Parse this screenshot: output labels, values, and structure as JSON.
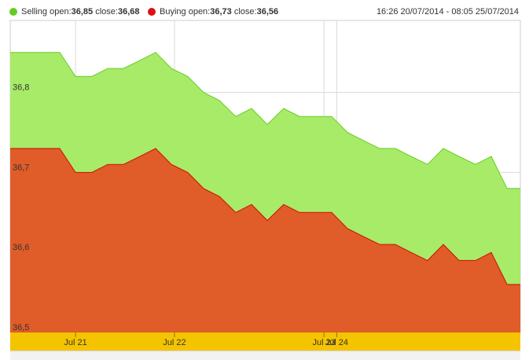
{
  "legend": {
    "selling": {
      "name": "Selling",
      "open_label": "open:",
      "open_value": "36,85",
      "close_label": "close:",
      "close_value": "36,68",
      "color": "#66cc22"
    },
    "buying": {
      "name": "Buying",
      "open_label": "open:",
      "open_value": "36,73",
      "close_label": "close:",
      "close_value": "36,56",
      "color": "#dd1111"
    },
    "date_range": "16:26 20/07/2014 - 08:05 25/07/2014"
  },
  "chart_data": {
    "type": "area",
    "title": "",
    "xlabel": "",
    "ylabel": "",
    "ylim": [
      36.5,
      36.89
    ],
    "y_ticks": [
      {
        "value": 36.8,
        "label": "36,8"
      },
      {
        "value": 36.7,
        "label": "36,7"
      },
      {
        "value": 36.6,
        "label": "36,6"
      },
      {
        "value": 36.5,
        "label": "36,5"
      }
    ],
    "x_range": [
      0,
      100
    ],
    "x_ticks": [
      {
        "x": 12.8,
        "label": "Jul 21"
      },
      {
        "x": 32.2,
        "label": "Jul 22"
      },
      {
        "x": 61.5,
        "label": "Jul 23"
      },
      {
        "x": 64.0,
        "label": "Jul 24"
      }
    ],
    "series": [
      {
        "name": "Selling",
        "fill": "#a8eb68",
        "stroke": "#66cc22",
        "x": [
          0,
          9.7,
          12.8,
          16.0,
          19.1,
          22.2,
          25.4,
          28.5,
          31.6,
          34.8,
          37.9,
          41.0,
          44.2,
          47.3,
          50.4,
          53.6,
          56.7,
          59.8,
          63.0,
          66.1,
          69.2,
          72.4,
          75.5,
          78.6,
          81.8,
          84.9,
          88.0,
          91.2,
          94.3,
          97.4,
          100
        ],
        "values": [
          36.85,
          36.85,
          36.82,
          36.82,
          36.83,
          36.83,
          36.84,
          36.85,
          36.83,
          36.82,
          36.8,
          36.79,
          36.77,
          36.78,
          36.76,
          36.78,
          36.77,
          36.77,
          36.77,
          36.75,
          36.74,
          36.73,
          36.73,
          36.72,
          36.71,
          36.73,
          36.72,
          36.71,
          36.72,
          36.68,
          36.68
        ]
      },
      {
        "name": "Buying",
        "fill": "#e05c28",
        "stroke": "#cc1100",
        "x": [
          0,
          9.7,
          12.8,
          16.0,
          19.1,
          22.2,
          25.4,
          28.5,
          31.6,
          34.8,
          37.9,
          41.0,
          44.2,
          47.3,
          50.4,
          53.6,
          56.7,
          59.8,
          63.0,
          66.1,
          69.2,
          72.4,
          75.5,
          78.6,
          81.8,
          84.9,
          88.0,
          91.2,
          94.3,
          97.4,
          100
        ],
        "values": [
          36.73,
          36.73,
          36.7,
          36.7,
          36.71,
          36.71,
          36.72,
          36.73,
          36.71,
          36.7,
          36.68,
          36.67,
          36.65,
          36.66,
          36.64,
          36.66,
          36.65,
          36.65,
          36.65,
          36.63,
          36.62,
          36.61,
          36.61,
          36.6,
          36.59,
          36.61,
          36.59,
          36.59,
          36.6,
          36.56,
          36.56
        ]
      }
    ]
  }
}
